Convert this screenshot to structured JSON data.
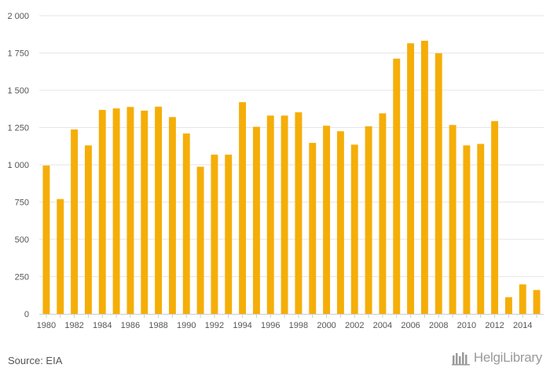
{
  "chart_data": {
    "type": "bar",
    "categories": [
      "1980",
      "1981",
      "1982",
      "1983",
      "1984",
      "1985",
      "1986",
      "1987",
      "1988",
      "1989",
      "1990",
      "1991",
      "1992",
      "1993",
      "1994",
      "1995",
      "1996",
      "1997",
      "1998",
      "1999",
      "2000",
      "2001",
      "2002",
      "2003",
      "2004",
      "2005",
      "2006",
      "2007",
      "2008",
      "2009",
      "2010",
      "2011",
      "2012",
      "2013",
      "2014",
      "2015"
    ],
    "values": [
      995,
      770,
      1237,
      1130,
      1368,
      1378,
      1388,
      1363,
      1390,
      1320,
      1210,
      987,
      1068,
      1068,
      1420,
      1255,
      1330,
      1330,
      1352,
      1147,
      1262,
      1225,
      1135,
      1258,
      1345,
      1712,
      1815,
      1832,
      1748,
      1267,
      1130,
      1140,
      1293,
      112,
      198,
      160
    ],
    "x_tick_labels": [
      "1980",
      "1982",
      "1984",
      "1986",
      "1988",
      "1990",
      "1992",
      "1994",
      "1996",
      "1998",
      "2000",
      "2002",
      "2004",
      "2006",
      "2008",
      "2010",
      "2012",
      "2014"
    ],
    "y_ticks": [
      0,
      250,
      500,
      750,
      1000,
      1250,
      1500,
      1750,
      2000
    ],
    "y_tick_labels": [
      "0",
      "250",
      "500",
      "750",
      "1 000",
      "1 250",
      "1 500",
      "1 750",
      "2 000"
    ],
    "ylim": [
      0,
      2000
    ],
    "grid": true,
    "bar_color": "#f5ae08",
    "grid_color": "#e6e6e6",
    "title": "",
    "xlabel": "",
    "ylabel": ""
  },
  "footer": {
    "source": "Source: EIA",
    "brand": "HelgiLibrary"
  }
}
